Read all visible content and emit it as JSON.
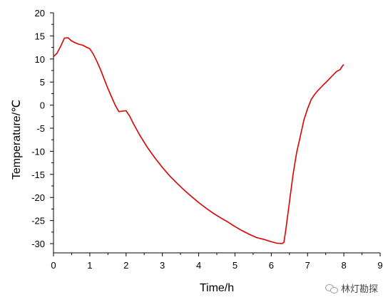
{
  "chart_data": {
    "type": "line",
    "xlabel": "Time/h",
    "ylabel": "Temperature/℃",
    "xlim": [
      0,
      9
    ],
    "ylim": [
      -32,
      20
    ],
    "xticks": [
      "0",
      "1",
      "2",
      "3",
      "4",
      "5",
      "6",
      "7",
      "8",
      "9"
    ],
    "yticks": [
      "20",
      "15",
      "10",
      "5",
      "0",
      "-5",
      "-10",
      "-15",
      "-20",
      "-25",
      "-30"
    ],
    "grid": false,
    "legend": "none",
    "series": [
      {
        "color": "#dd0000",
        "points": [
          [
            0.0,
            10.5
          ],
          [
            0.1,
            11.3
          ],
          [
            0.2,
            12.8
          ],
          [
            0.3,
            14.5
          ],
          [
            0.4,
            14.6
          ],
          [
            0.5,
            13.9
          ],
          [
            0.6,
            13.5
          ],
          [
            0.7,
            13.2
          ],
          [
            0.8,
            13.0
          ],
          [
            0.9,
            12.6
          ],
          [
            1.0,
            12.2
          ],
          [
            1.1,
            11.0
          ],
          [
            1.2,
            9.4
          ],
          [
            1.3,
            7.6
          ],
          [
            1.4,
            5.6
          ],
          [
            1.5,
            3.6
          ],
          [
            1.6,
            1.8
          ],
          [
            1.7,
            0.0
          ],
          [
            1.8,
            -1.4
          ],
          [
            1.9,
            -1.3
          ],
          [
            2.0,
            -1.2
          ],
          [
            2.1,
            -2.4
          ],
          [
            2.2,
            -4.0
          ],
          [
            2.3,
            -5.4
          ],
          [
            2.4,
            -6.8
          ],
          [
            2.6,
            -9.3
          ],
          [
            2.8,
            -11.5
          ],
          [
            3.0,
            -13.5
          ],
          [
            3.2,
            -15.3
          ],
          [
            3.4,
            -16.9
          ],
          [
            3.6,
            -18.4
          ],
          [
            3.8,
            -19.8
          ],
          [
            4.0,
            -21.1
          ],
          [
            4.2,
            -22.3
          ],
          [
            4.4,
            -23.4
          ],
          [
            4.6,
            -24.4
          ],
          [
            4.8,
            -25.3
          ],
          [
            5.0,
            -26.3
          ],
          [
            5.2,
            -27.2
          ],
          [
            5.4,
            -28.0
          ],
          [
            5.6,
            -28.7
          ],
          [
            5.8,
            -29.1
          ],
          [
            6.0,
            -29.6
          ],
          [
            6.15,
            -29.9
          ],
          [
            6.3,
            -30.0
          ],
          [
            6.35,
            -29.7
          ],
          [
            6.4,
            -27.0
          ],
          [
            6.5,
            -21.0
          ],
          [
            6.6,
            -15.0
          ],
          [
            6.7,
            -10.2
          ],
          [
            6.8,
            -6.8
          ],
          [
            6.9,
            -3.2
          ],
          [
            7.0,
            -0.8
          ],
          [
            7.1,
            1.2
          ],
          [
            7.2,
            2.4
          ],
          [
            7.3,
            3.3
          ],
          [
            7.4,
            4.1
          ],
          [
            7.5,
            4.9
          ],
          [
            7.6,
            5.7
          ],
          [
            7.7,
            6.5
          ],
          [
            7.8,
            7.3
          ],
          [
            7.9,
            7.7
          ],
          [
            7.95,
            8.4
          ],
          [
            8.0,
            8.8
          ]
        ]
      }
    ]
  },
  "watermark": {
    "text": "林灯勘探",
    "icon": "wechat-icon"
  }
}
